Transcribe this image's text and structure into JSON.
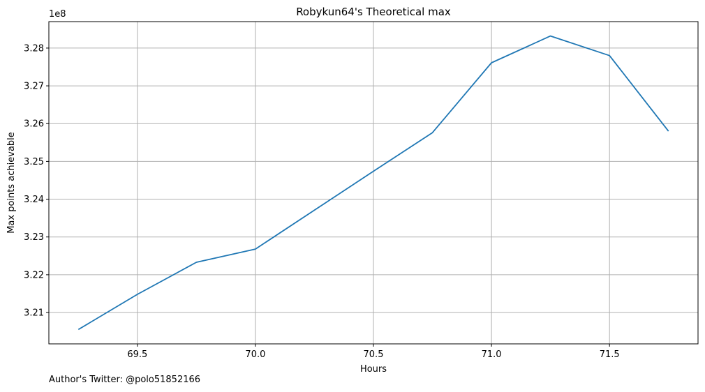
{
  "chart_data": {
    "type": "line",
    "title": "Robykun64's Theoretical max",
    "xlabel": "Hours",
    "ylabel": "Max points achievable",
    "y_offset_label": "1e8",
    "x_ticks": [
      69.5,
      70.0,
      70.5,
      71.0,
      71.5
    ],
    "x_tick_labels": [
      "69.5",
      "70.0",
      "70.5",
      "71.0",
      "71.5"
    ],
    "y_ticks": [
      3.21,
      3.22,
      3.23,
      3.24,
      3.25,
      3.26,
      3.27,
      3.28
    ],
    "y_tick_labels": [
      "3.21",
      "3.22",
      "3.23",
      "3.24",
      "3.25",
      "3.26",
      "3.27",
      "3.28"
    ],
    "xlim": [
      69.125,
      71.875
    ],
    "ylim": [
      3.2017,
      3.287
    ],
    "grid": true,
    "series": [
      {
        "color": "#1f77b4",
        "x": [
          69.25,
          69.5,
          69.75,
          70.0,
          70.25,
          70.5,
          70.75,
          71.0,
          71.25,
          71.5,
          71.75
        ],
        "y": [
          3.2055,
          3.2148,
          3.2233,
          3.2268,
          3.2371,
          3.2474,
          3.2576,
          3.2761,
          3.2832,
          3.278,
          3.258
        ]
      }
    ]
  },
  "footer": {
    "author_note": "Author's Twitter: @polo51852166"
  }
}
